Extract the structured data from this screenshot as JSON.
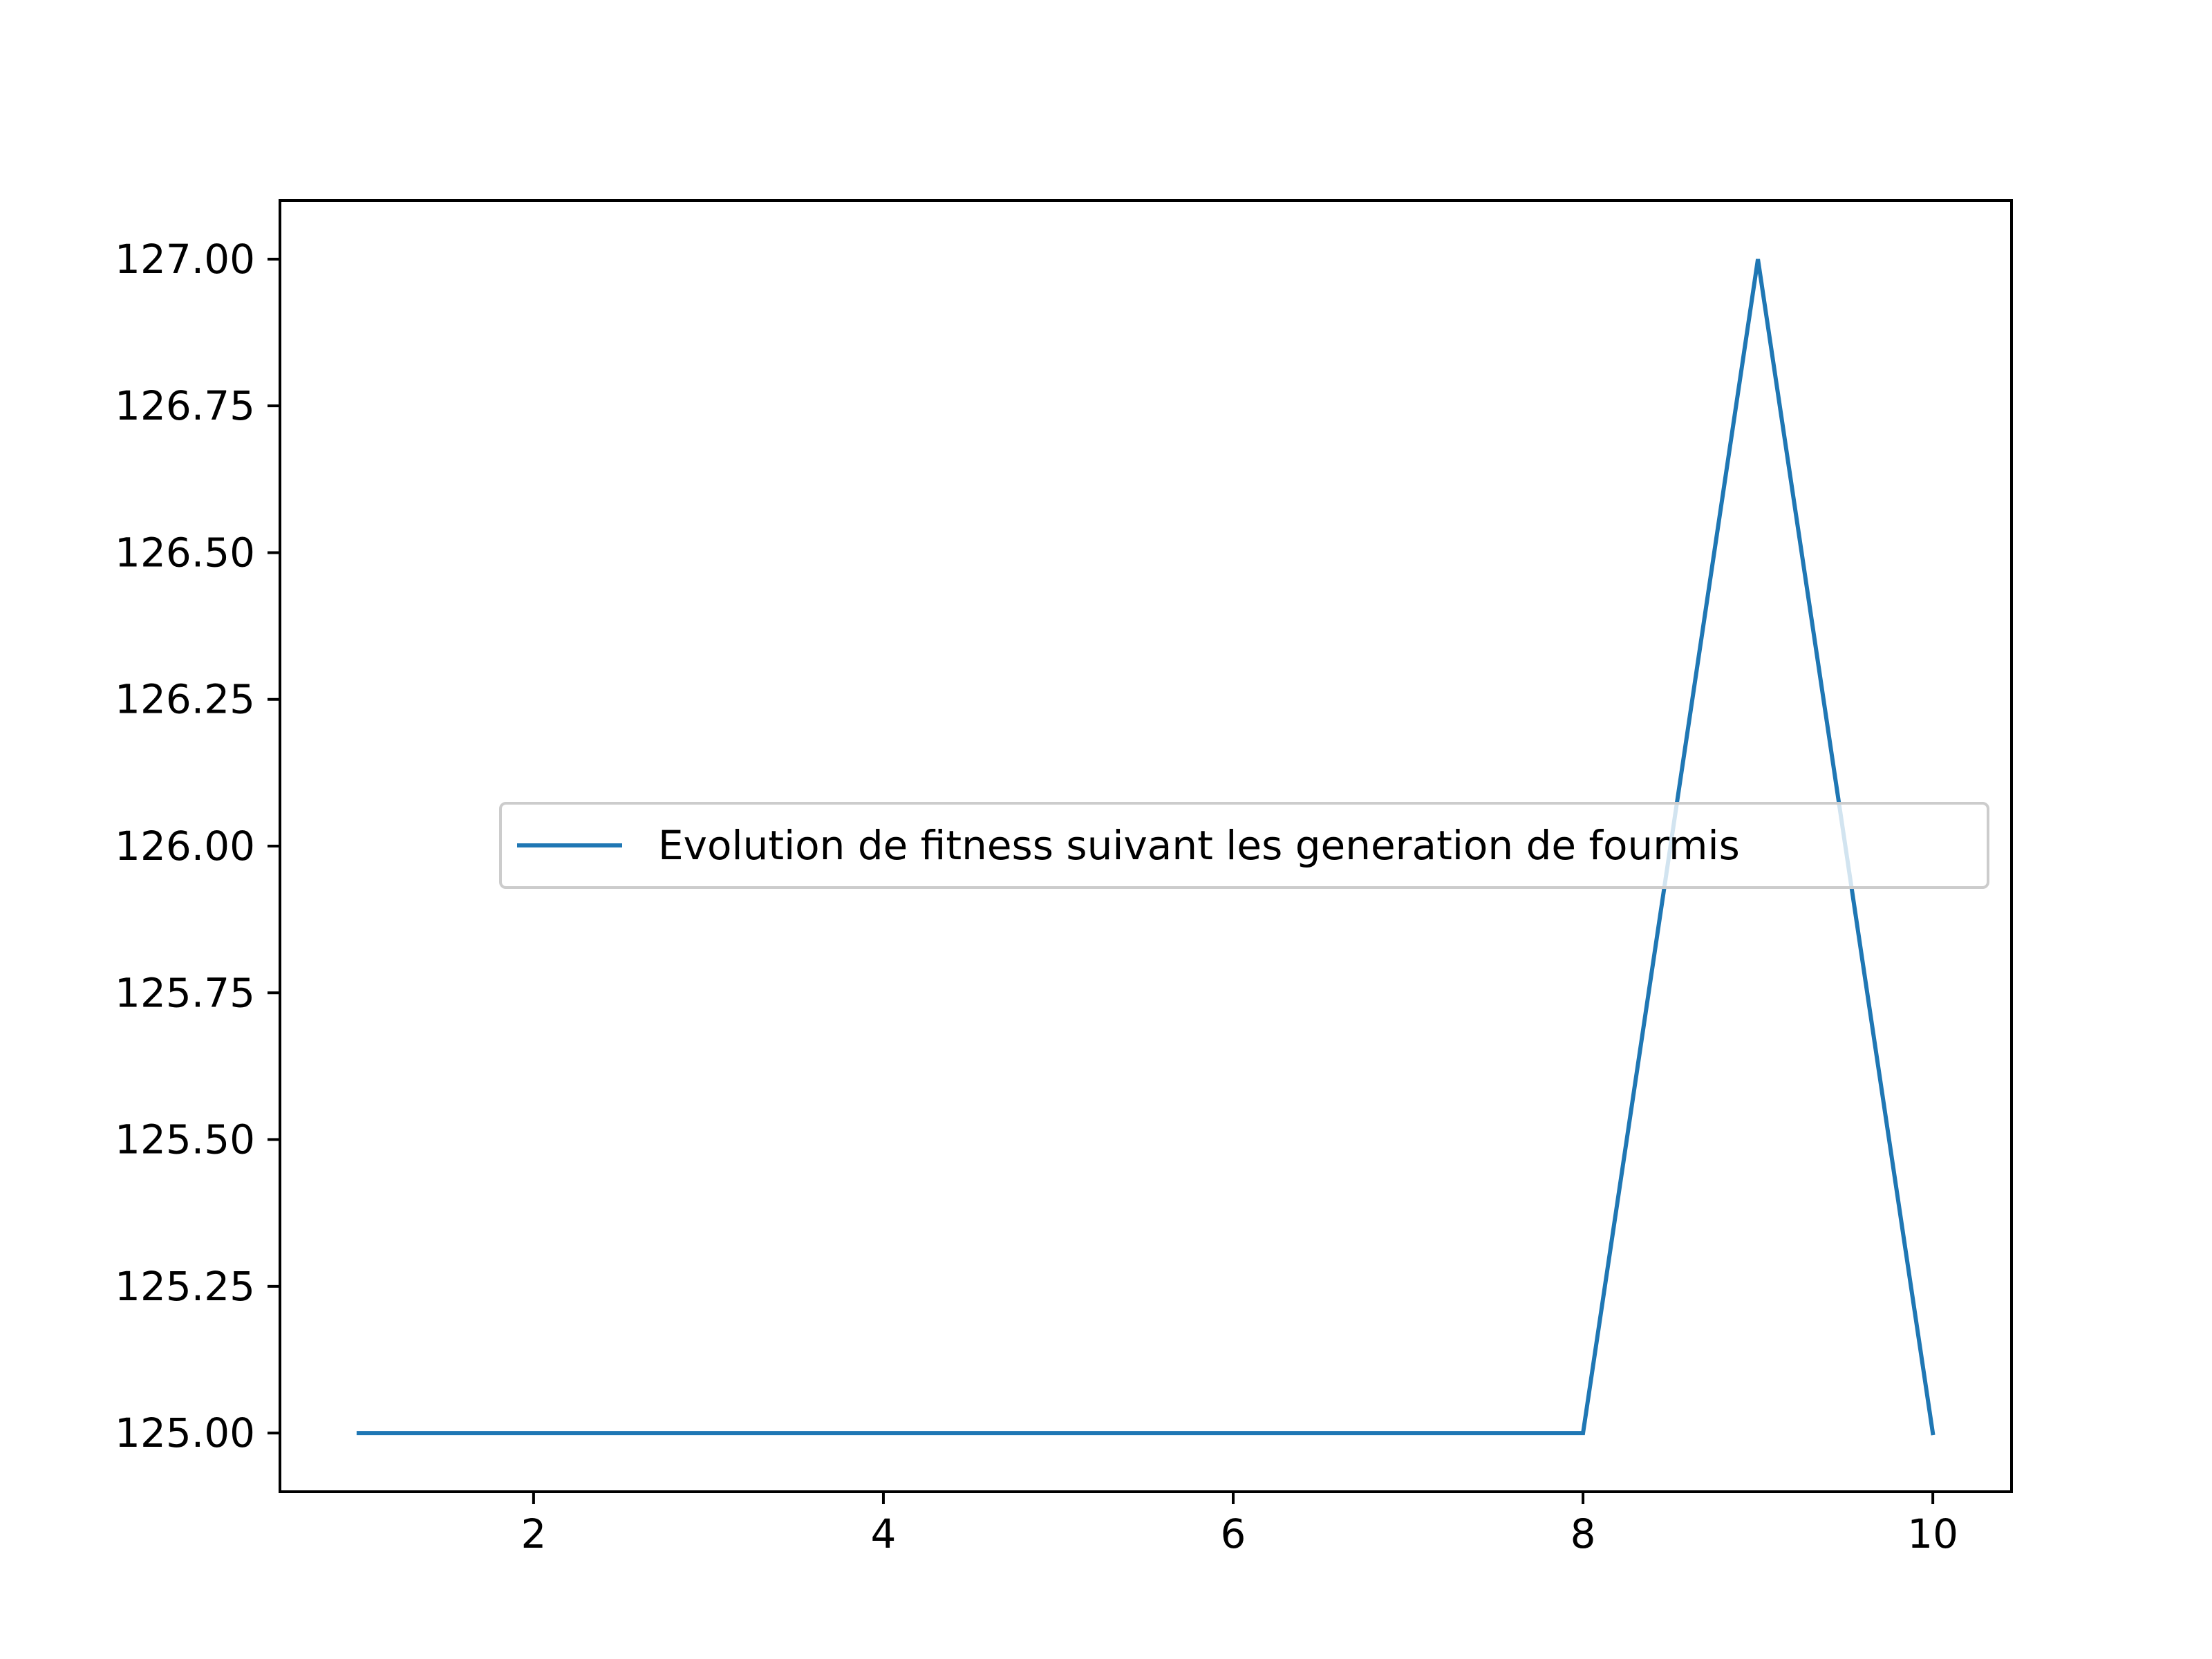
{
  "chart_data": {
    "type": "line",
    "title": "",
    "xlabel": "",
    "ylabel": "",
    "xlim": [
      0.55,
      10.45
    ],
    "ylim": [
      124.9,
      127.1
    ],
    "x_ticks": [
      2,
      4,
      6,
      8,
      10
    ],
    "x_tick_labels": [
      "2",
      "4",
      "6",
      "8",
      "10"
    ],
    "y_ticks": [
      125.0,
      125.25,
      125.5,
      125.75,
      126.0,
      126.25,
      126.5,
      126.75,
      127.0
    ],
    "y_tick_labels": [
      "125.00",
      "125.25",
      "125.50",
      "125.75",
      "126.00",
      "126.25",
      "126.50",
      "126.75",
      "127.00"
    ],
    "grid": false,
    "legend_position": "center-right",
    "series": [
      {
        "name": "Evolution de fitness suivant les generation de fourmis",
        "color": "#1f77b4",
        "x": [
          1,
          2,
          3,
          4,
          5,
          6,
          7,
          8,
          9,
          10
        ],
        "y": [
          125,
          125,
          125,
          125,
          125,
          125,
          125,
          125,
          127,
          125
        ]
      }
    ]
  }
}
